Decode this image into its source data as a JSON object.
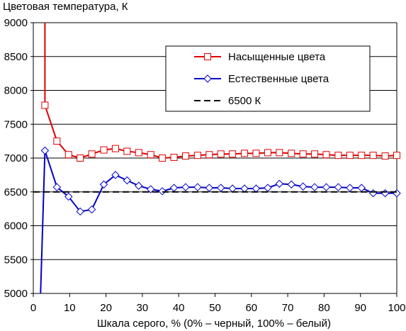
{
  "chart_data": {
    "type": "line",
    "ylabel": "Цветовая температура, К",
    "xlabel": "Шкала серого, % (0% – черный, 100% – белый)",
    "xlim": [
      0,
      100
    ],
    "ylim": [
      5000,
      9000
    ],
    "x_ticks": [
      0,
      10,
      20,
      30,
      40,
      50,
      60,
      70,
      80,
      90,
      100
    ],
    "y_ticks": [
      5000,
      5500,
      6000,
      6500,
      7000,
      7500,
      8000,
      8500,
      9000
    ],
    "grid": "horizontal",
    "legend_position": "top-right",
    "series": [
      {
        "name": "Насыщенные цвета",
        "color": "#e00000",
        "marker": "square",
        "x": [
          3.2,
          6.5,
          9.7,
          12.9,
          16.1,
          19.4,
          22.6,
          25.8,
          29.0,
          32.3,
          35.5,
          38.7,
          41.9,
          45.2,
          48.4,
          51.6,
          54.8,
          58.1,
          61.3,
          64.5,
          67.7,
          71.0,
          74.2,
          77.4,
          80.6,
          83.9,
          87.1,
          90.3,
          93.5,
          96.8,
          100.0
        ],
        "values": [
          7780,
          7250,
          7050,
          7000,
          7060,
          7120,
          7140,
          7100,
          7080,
          7050,
          7000,
          7010,
          7030,
          7040,
          7050,
          7060,
          7060,
          7070,
          7070,
          7080,
          7080,
          7070,
          7060,
          7060,
          7050,
          7040,
          7040,
          7040,
          7040,
          7030,
          7040
        ],
        "lead_in": {
          "x": [
            3.2,
            3.2
          ],
          "values": [
            9000,
            7780
          ]
        }
      },
      {
        "name": "Естественные цвета",
        "color": "#0000c8",
        "marker": "diamond",
        "x": [
          3.2,
          6.5,
          9.7,
          12.9,
          16.1,
          19.4,
          22.6,
          25.8,
          29.0,
          32.3,
          35.5,
          38.7,
          41.9,
          45.2,
          48.4,
          51.6,
          54.8,
          58.1,
          61.3,
          64.5,
          67.7,
          71.0,
          74.2,
          77.4,
          80.6,
          83.9,
          87.1,
          90.3,
          93.5,
          96.8,
          100.0
        ],
        "values": [
          7110,
          6570,
          6430,
          6210,
          6240,
          6610,
          6750,
          6670,
          6590,
          6540,
          6510,
          6560,
          6570,
          6570,
          6560,
          6560,
          6550,
          6550,
          6550,
          6560,
          6620,
          6610,
          6580,
          6570,
          6570,
          6570,
          6560,
          6560,
          6480,
          6480,
          6480
        ],
        "lead_in": {
          "x": [
            2.0,
            3.2
          ],
          "values": [
            5000,
            7110
          ]
        }
      },
      {
        "name": "6500 К",
        "color": "#000000",
        "dash": "dashed",
        "x": [
          0,
          100
        ],
        "values": [
          6500,
          6500
        ]
      }
    ]
  }
}
